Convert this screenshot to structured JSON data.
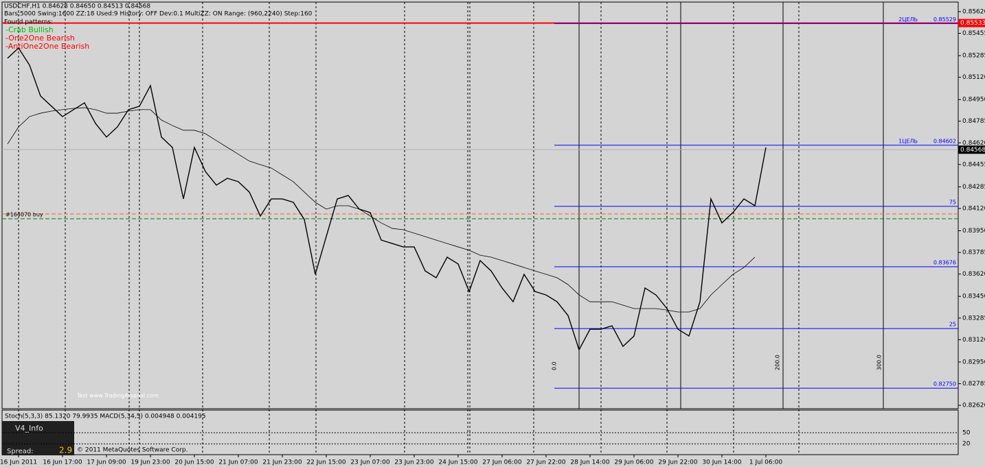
{
  "chart_data": {
    "type": "line",
    "symbol_line": "USDCHF,H1  0.84628 0.84650 0.84513 0.84568",
    "settings_line": "Bars:5000  Swing:1600  ZZ:18  Used:9  History: OFF Dev:0.1  MultiZZ: ON  Range: (960,2240)  Step:160",
    "patterns_title": "Found patterns:",
    "patterns": [
      {
        "text": "-Crab Bullish",
        "color": "#00c000"
      },
      {
        "text": "-One2One Bearish",
        "color": "#ff0000"
      },
      {
        "text": "-AntiOne2One Bearish",
        "color": "#ff0000"
      }
    ],
    "categories": [
      null,
      "16 Jun 2011",
      null,
      null,
      null,
      "16 Jun 17:00",
      null,
      null,
      null,
      "17 Jun 09:00",
      null,
      null,
      null,
      "19 Jun 23:00",
      null,
      null,
      null,
      "20 Jun 15:00",
      null,
      null,
      null,
      "21 Jun 07:00",
      null,
      null,
      null,
      "21 Jun 23:00",
      null,
      null,
      null,
      "22 Jun 15:00",
      null,
      null,
      null,
      "23 Jun 07:00",
      null,
      null,
      null,
      "23 Jun 23:00",
      null,
      null,
      null,
      "24 Jun 15:00",
      null,
      null,
      null,
      "27 Jun 06:00",
      null,
      null,
      null,
      "27 Jun 22:00",
      null,
      null,
      null,
      "28 Jun 14:00",
      null,
      null,
      null,
      "29 Jun 06:00",
      null,
      null,
      null,
      "29 Jun 22:00",
      null,
      null,
      null,
      "30 Jun 14:00",
      null,
      null,
      null,
      "1 Jul 06:00"
    ],
    "series": [
      {
        "color": "#000000",
        "width": 1.4,
        "values": [
          0.85265,
          0.85343,
          0.85212,
          0.84977,
          0.84899,
          0.8482,
          0.84873,
          0.84925,
          0.84768,
          0.84664,
          0.84742,
          0.84873,
          0.84899,
          0.85056,
          0.84664,
          0.84585,
          0.84193,
          0.84585,
          0.84402,
          0.84298,
          0.8435,
          0.84324,
          0.84245,
          0.84062,
          0.84193,
          0.84193,
          0.84167,
          0.84036,
          0.83618,
          0.83906,
          0.84193,
          0.84219,
          0.84115,
          0.84089,
          0.83879,
          0.83853,
          0.83827,
          0.83827,
          0.83644,
          0.83592,
          0.83749,
          0.83697,
          0.83487,
          0.83723,
          0.83644,
          0.83514,
          0.83409,
          0.83618,
          0.83487,
          0.83461,
          0.83409,
          0.83304,
          0.83043,
          0.832,
          0.832,
          0.83226,
          0.83069,
          0.83148,
          0.83514,
          0.83461,
          0.83357,
          0.832,
          0.83148,
          0.83409,
          0.84193,
          0.8401,
          0.84089,
          0.84193,
          0.84141,
          0.84585
        ]
      },
      {
        "color": "#000000",
        "width": 0.8,
        "values": [
          0.84611,
          0.84742,
          0.8482,
          0.84846,
          0.84862,
          0.84873,
          0.84883,
          0.84888,
          0.84873,
          0.84846,
          0.84846,
          0.84862,
          0.84873,
          0.84873,
          0.84794,
          0.84752,
          0.84716,
          0.84716,
          0.8469,
          0.84637,
          0.84585,
          0.84533,
          0.84481,
          0.84454,
          0.84428,
          0.84376,
          0.84324,
          0.84245,
          0.84167,
          0.84115,
          0.84141,
          0.84141,
          0.84115,
          0.84062,
          0.8401,
          0.83968,
          0.83958,
          0.83932,
          0.83906,
          0.83879,
          0.83853,
          0.83827,
          0.83801,
          0.83764,
          0.83749,
          0.83723,
          0.83697,
          0.8367,
          0.83644,
          0.83618,
          0.83592,
          0.8354,
          0.83461,
          0.83409,
          0.83409,
          0.83409,
          0.83383,
          0.83357,
          0.83357,
          0.83357,
          0.83346,
          0.83331,
          0.83331,
          0.83357,
          0.83461,
          0.8354,
          0.83618,
          0.8367,
          0.83749,
          null
        ]
      }
    ],
    "ylim": [
      0.82594,
      0.85693
    ],
    "yticks": [
      {
        "value": 0.8562,
        "label": "0.85620"
      },
      {
        "value": 0.85455,
        "label": "0.85455"
      },
      {
        "value": 0.85285,
        "label": "0.85285"
      },
      {
        "value": 0.8512,
        "label": "0.85120"
      },
      {
        "value": 0.8495,
        "label": "0.84950"
      },
      {
        "value": 0.84785,
        "label": "0.84785"
      },
      {
        "value": 0.8462,
        "label": "0.84620"
      },
      {
        "value": 0.84455,
        "label": "0.84455"
      },
      {
        "value": 0.84285,
        "label": "0.84285"
      },
      {
        "value": 0.8412,
        "label": "0.84120"
      },
      {
        "value": 0.8395,
        "label": "0.83950"
      },
      {
        "value": 0.83785,
        "label": "0.83785"
      },
      {
        "value": 0.8362,
        "label": "0.83620"
      },
      {
        "value": 0.8345,
        "label": "0.83450"
      },
      {
        "value": 0.83285,
        "label": "0.83285"
      },
      {
        "value": 0.8312,
        "label": "0.83120"
      },
      {
        "value": 0.8295,
        "label": "0.82950"
      },
      {
        "value": 0.82785,
        "label": "0.82785"
      },
      {
        "value": 0.8262,
        "label": "0.82620"
      }
    ],
    "levels": [
      {
        "value": 0.85533,
        "label": "0.85533",
        "color": "#ff0000"
      },
      {
        "value": 0.85529,
        "name": "2ЦЕЛЬ",
        "label": "0.85529",
        "color": "#0000ff"
      },
      {
        "value": 0.84602,
        "name": "1ЦЕЛЬ",
        "label": "0.84602",
        "color": "#0000ff"
      },
      {
        "value": 0.84136,
        "label": "75",
        "color": "#0000ff"
      },
      {
        "value": 0.83676,
        "label": "0.83676",
        "color": "#0000ff"
      },
      {
        "value": 0.83205,
        "label": "25",
        "color": "#0000ff"
      },
      {
        "value": 0.8275,
        "label": "0.82750",
        "color": "#0000ff"
      }
    ],
    "current_price": 0.84568,
    "order_label": "#164070 buy",
    "verticals": [
      "0.0",
      "200.0",
      "300.0"
    ],
    "watermark": "Test www.TradingArsenal.com",
    "copyright": "© 2011 MetaQuotes Software Corp.",
    "info_box": {
      "title": "V4_Info",
      "spread_label": "Spread:",
      "spread": 2.9
    },
    "indicator_panel": {
      "title": "Stoch(5,3,3) 85.1320 79.9935  MACD(5,34,5) 0.004948 0.004195",
      "ylim": [
        0,
        100
      ],
      "yticks": [
        50,
        20
      ]
    }
  }
}
